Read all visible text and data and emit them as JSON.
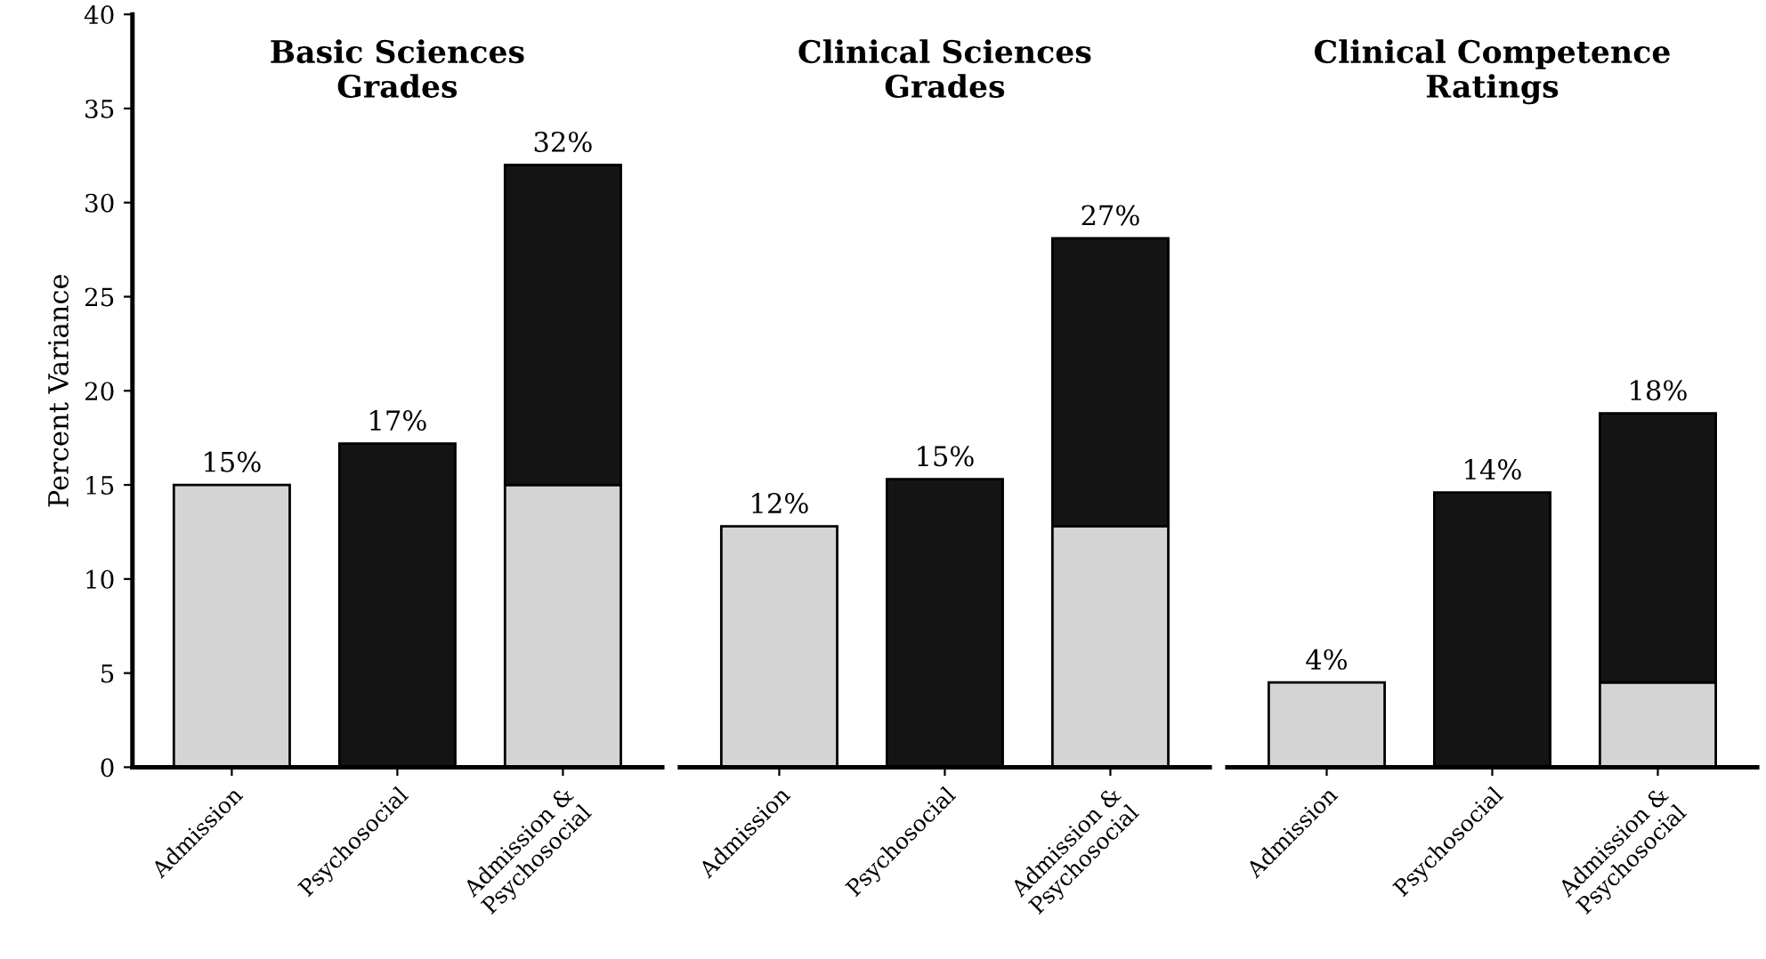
{
  "chart_data": [
    {
      "type": "bar",
      "title": "Basic Sciences\nGrades",
      "ylabel": "Percent Variance",
      "categories": [
        "Admission",
        "Psychosocial",
        "Admission &\nPsychosocial"
      ],
      "stacked": true,
      "series": [
        {
          "color": "#d4d4d4",
          "values": [
            15,
            null,
            15
          ]
        },
        {
          "color": "#141414",
          "values": [
            null,
            17.2,
            17
          ]
        }
      ],
      "totals": [
        "15%",
        "17%",
        "32%"
      ],
      "ylim": [
        0,
        40
      ],
      "yticks": [
        0,
        5,
        10,
        15,
        20,
        25,
        30,
        35,
        40
      ],
      "grid": false,
      "legend": false
    },
    {
      "type": "bar",
      "title": "Clinical Sciences\nGrades",
      "categories": [
        "Admission",
        "Psychosocial",
        "Admission &\nPsychosocial"
      ],
      "stacked": true,
      "series": [
        {
          "color": "#d4d4d4",
          "values": [
            12.8,
            null,
            12.8
          ]
        },
        {
          "color": "#141414",
          "values": [
            null,
            15.3,
            15.3
          ]
        }
      ],
      "totals": [
        "12%",
        "15%",
        "27%"
      ],
      "ylim": [
        0,
        40
      ],
      "tick_labels": "x",
      "grid": false,
      "legend": false
    },
    {
      "type": "bar",
      "title": "Clinical Competence\nRatings",
      "categories": [
        "Admission",
        "Psychosocial",
        "Admission &\nPsychosocial"
      ],
      "stacked": true,
      "series": [
        {
          "color": "#d4d4d4",
          "values": [
            4.5,
            null,
            4.5
          ]
        },
        {
          "color": "#141414",
          "values": [
            null,
            14.6,
            14.3
          ]
        }
      ],
      "totals": [
        "4%",
        "14%",
        "18%"
      ],
      "ylim": [
        0,
        40
      ],
      "tick_labels": "x",
      "grid": false,
      "legend": false
    }
  ]
}
